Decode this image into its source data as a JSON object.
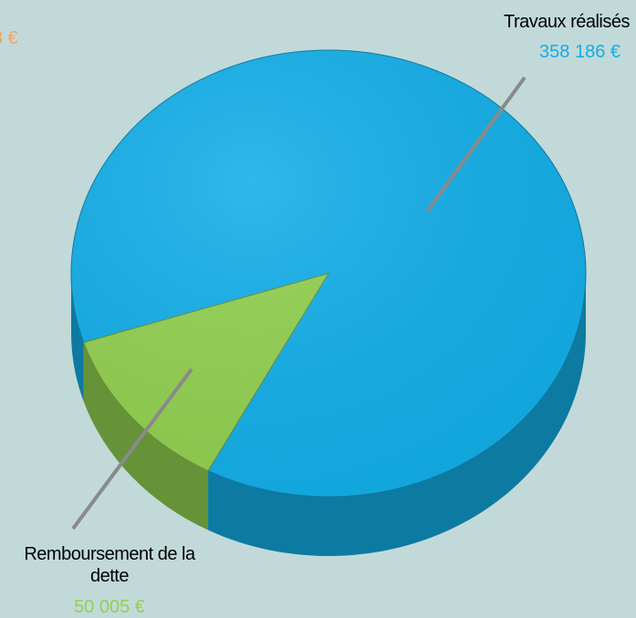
{
  "chart_data": {
    "type": "pie",
    "categories": [
      "Travaux réalisés",
      "Remboursement de la dette"
    ],
    "values": [
      358186,
      50005
    ],
    "value_labels": [
      "358 186 €",
      "50 005 €"
    ],
    "colors": [
      "#12aee8",
      "#92d050"
    ],
    "annotations": [
      {
        "text": "3 €",
        "color": "#f4a460"
      }
    ]
  }
}
